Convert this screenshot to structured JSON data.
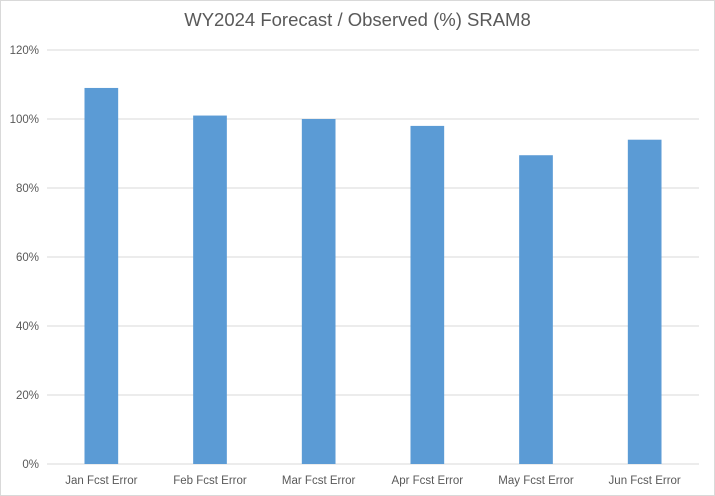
{
  "chart_data": {
    "type": "bar",
    "title": "WY2024 Forecast / Observed (%) SRAM8",
    "categories": [
      "Jan Fcst Error",
      "Feb Fcst Error",
      "Mar Fcst Error",
      "Apr Fcst Error",
      "May Fcst Error",
      "Jun Fcst Error"
    ],
    "values": [
      109,
      101,
      100,
      98,
      89.5,
      94
    ],
    "ylim": [
      0,
      120
    ],
    "yticks": [
      0,
      20,
      40,
      60,
      80,
      100,
      120
    ],
    "ytick_labels": [
      "0%",
      "20%",
      "40%",
      "60%",
      "80%",
      "100%",
      "120%"
    ],
    "xlabel": "",
    "ylabel": "",
    "grid": true,
    "legend": "none",
    "colors": {
      "bar": "#5b9bd5",
      "grid": "#d9d9d9",
      "text": "#595959"
    }
  }
}
